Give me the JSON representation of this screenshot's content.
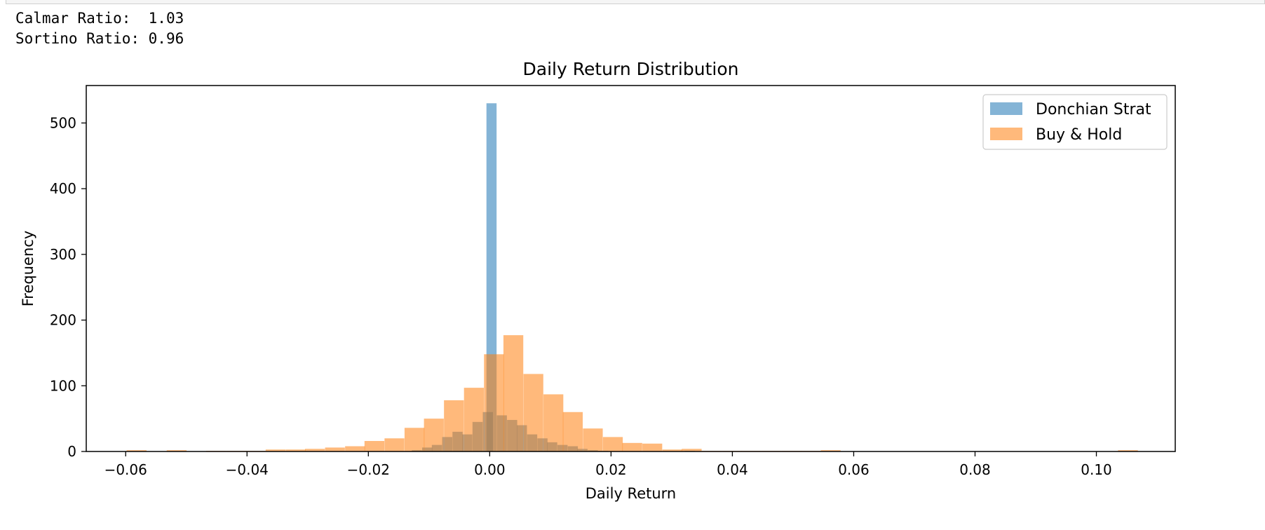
{
  "metrics": [
    {
      "label": "Calmar Ratio:  ",
      "value": "1.03"
    },
    {
      "label": "Sortino Ratio: ",
      "value": "0.96"
    }
  ],
  "chart_data": {
    "type": "bar",
    "title": "Daily Return Distribution",
    "xlabel": "Daily Return",
    "ylabel": "Frequency",
    "xlim": [
      -0.0665,
      0.113
    ],
    "ylim": [
      0,
      557
    ],
    "xticks": [
      -0.06,
      -0.04,
      -0.02,
      0.0,
      0.02,
      0.04,
      0.06,
      0.08,
      0.1
    ],
    "xtick_labels": [
      "−0.06",
      "−0.04",
      "−0.02",
      "0.00",
      "0.02",
      "0.04",
      "0.06",
      "0.08",
      "0.10"
    ],
    "yticks": [
      0,
      100,
      200,
      300,
      400,
      500
    ],
    "ytick_labels": [
      "0",
      "100",
      "200",
      "300",
      "400",
      "500"
    ],
    "legend": "top-right",
    "grid": false,
    "series": [
      {
        "name": "Donchian Strat",
        "color": "#1f77b4",
        "opacity": 0.55,
        "bin_width": 0.00167,
        "bins": [
          [
            -0.012,
            2
          ],
          [
            -0.0103,
            6
          ],
          [
            -0.0087,
            10
          ],
          [
            -0.007,
            22
          ],
          [
            -0.0053,
            30
          ],
          [
            -0.0037,
            26
          ],
          [
            -0.002,
            45
          ],
          [
            -0.0003,
            60
          ],
          [
            0.0003,
            530
          ],
          [
            0.002,
            55
          ],
          [
            0.0037,
            48
          ],
          [
            0.0053,
            40
          ],
          [
            0.007,
            26
          ],
          [
            0.0087,
            20
          ],
          [
            0.0103,
            14
          ],
          [
            0.012,
            10
          ],
          [
            0.0137,
            8
          ],
          [
            0.0153,
            4
          ],
          [
            0.017,
            2
          ],
          [
            0.0187,
            1
          ],
          [
            0.033,
            1
          ]
        ]
      },
      {
        "name": "Buy & Hold",
        "color": "#ff7f0e",
        "opacity": 0.55,
        "bin_width": 0.00327,
        "bins": [
          [
            -0.0582,
            2
          ],
          [
            -0.0516,
            2
          ],
          [
            -0.0451,
            1
          ],
          [
            -0.0418,
            1
          ],
          [
            -0.0386,
            1
          ],
          [
            -0.0353,
            3
          ],
          [
            -0.032,
            3
          ],
          [
            -0.0288,
            4
          ],
          [
            -0.0255,
            6
          ],
          [
            -0.0222,
            8
          ],
          [
            -0.019,
            16
          ],
          [
            -0.0157,
            20
          ],
          [
            -0.0124,
            36
          ],
          [
            -0.0092,
            50
          ],
          [
            -0.0059,
            78
          ],
          [
            -0.0026,
            97
          ],
          [
            0.0007,
            148
          ],
          [
            0.0039,
            177
          ],
          [
            0.0072,
            118
          ],
          [
            0.0105,
            87
          ],
          [
            0.0137,
            60
          ],
          [
            0.017,
            35
          ],
          [
            0.0203,
            22
          ],
          [
            0.0235,
            13
          ],
          [
            0.0268,
            12
          ],
          [
            0.0301,
            3
          ],
          [
            0.0333,
            4
          ],
          [
            0.0366,
            1
          ],
          [
            0.0399,
            1
          ],
          [
            0.0431,
            1
          ],
          [
            0.0464,
            1
          ],
          [
            0.0497,
            1
          ],
          [
            0.0529,
            1
          ],
          [
            0.0562,
            2
          ],
          [
            0.1052,
            2
          ]
        ]
      }
    ]
  }
}
